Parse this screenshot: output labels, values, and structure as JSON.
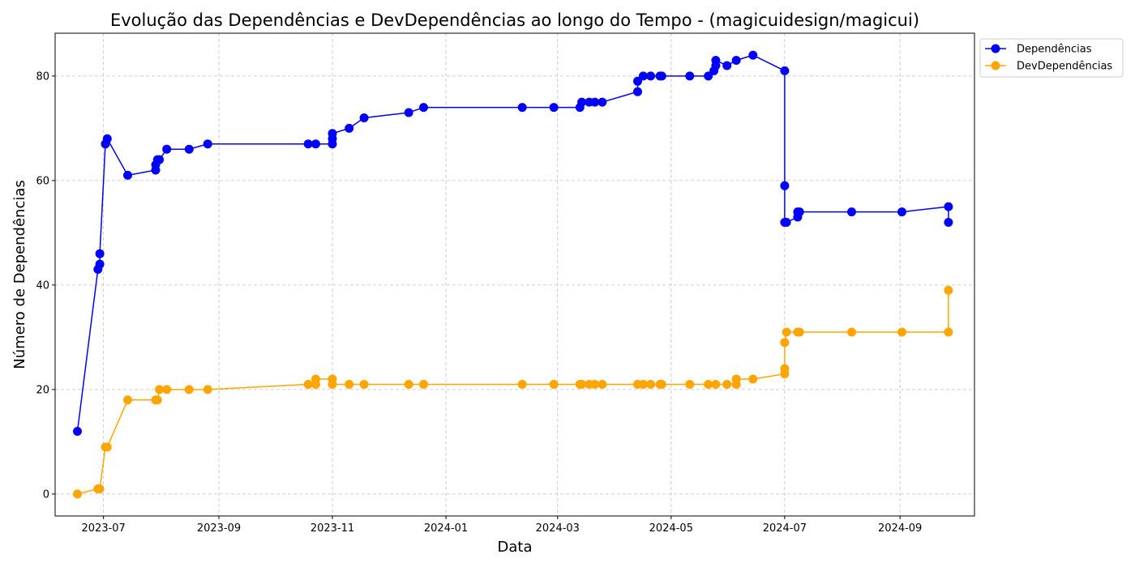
{
  "chart_data": {
    "type": "line",
    "title": "Evolução das Dependências e DevDependências ao longo do Tempo - (magicuidesign/magicui)",
    "xlabel": "Data",
    "ylabel": "Número de Dependências",
    "x_ticks": [
      "2023-07",
      "2023-09",
      "2023-11",
      "2024-01",
      "2024-03",
      "2024-05",
      "2024-07",
      "2024-09"
    ],
    "y_ticks": [
      0,
      20,
      40,
      60,
      80
    ],
    "xlim": [
      "2023-06-05",
      "2024-10-11"
    ],
    "ylim": [
      -4.2,
      88.2
    ],
    "grid": true,
    "legend_position": "outside-top-right",
    "series": [
      {
        "name": "Dependências",
        "color": "#0000ff",
        "points": [
          [
            "2023-06-17",
            12
          ],
          [
            "2023-06-28",
            43
          ],
          [
            "2023-06-29",
            44
          ],
          [
            "2023-06-29",
            46
          ],
          [
            "2023-07-02",
            67
          ],
          [
            "2023-07-03",
            68
          ],
          [
            "2023-07-14",
            61
          ],
          [
            "2023-07-29",
            62
          ],
          [
            "2023-07-29",
            63
          ],
          [
            "2023-07-30",
            64
          ],
          [
            "2023-07-31",
            64
          ],
          [
            "2023-08-04",
            66
          ],
          [
            "2023-08-16",
            66
          ],
          [
            "2023-08-26",
            67
          ],
          [
            "2023-10-19",
            67
          ],
          [
            "2023-10-23",
            67
          ],
          [
            "2023-11-01",
            67
          ],
          [
            "2023-11-01",
            68
          ],
          [
            "2023-11-01",
            69
          ],
          [
            "2023-11-10",
            70
          ],
          [
            "2023-11-18",
            72
          ],
          [
            "2023-12-12",
            73
          ],
          [
            "2023-12-20",
            74
          ],
          [
            "2024-02-11",
            74
          ],
          [
            "2024-02-28",
            74
          ],
          [
            "2024-03-13",
            74
          ],
          [
            "2024-03-14",
            75
          ],
          [
            "2024-03-18",
            75
          ],
          [
            "2024-03-21",
            75
          ],
          [
            "2024-03-25",
            75
          ],
          [
            "2024-04-13",
            77
          ],
          [
            "2024-04-13",
            79
          ],
          [
            "2024-04-16",
            80
          ],
          [
            "2024-04-20",
            80
          ],
          [
            "2024-04-25",
            80
          ],
          [
            "2024-04-26",
            80
          ],
          [
            "2024-05-11",
            80
          ],
          [
            "2024-05-21",
            80
          ],
          [
            "2024-05-24",
            81
          ],
          [
            "2024-05-25",
            82
          ],
          [
            "2024-05-25",
            83
          ],
          [
            "2024-05-31",
            82
          ],
          [
            "2024-06-05",
            83
          ],
          [
            "2024-06-14",
            84
          ],
          [
            "2024-07-01",
            81
          ],
          [
            "2024-07-01",
            59
          ],
          [
            "2024-07-01",
            52
          ],
          [
            "2024-07-02",
            52
          ],
          [
            "2024-07-08",
            53
          ],
          [
            "2024-07-08",
            54
          ],
          [
            "2024-07-09",
            54
          ],
          [
            "2024-08-06",
            54
          ],
          [
            "2024-09-02",
            54
          ],
          [
            "2024-09-27",
            55
          ],
          [
            "2024-09-27",
            52
          ]
        ]
      },
      {
        "name": "DevDependências",
        "color": "#ffa500",
        "points": [
          [
            "2023-06-17",
            0
          ],
          [
            "2023-06-28",
            1
          ],
          [
            "2023-06-29",
            1
          ],
          [
            "2023-07-02",
            9
          ],
          [
            "2023-07-03",
            9
          ],
          [
            "2023-07-14",
            18
          ],
          [
            "2023-07-29",
            18
          ],
          [
            "2023-07-30",
            18
          ],
          [
            "2023-07-31",
            20
          ],
          [
            "2023-08-04",
            20
          ],
          [
            "2023-08-16",
            20
          ],
          [
            "2023-08-26",
            20
          ],
          [
            "2023-10-19",
            21
          ],
          [
            "2023-10-23",
            21
          ],
          [
            "2023-10-23",
            22
          ],
          [
            "2023-11-01",
            22
          ],
          [
            "2023-11-01",
            21
          ],
          [
            "2023-11-10",
            21
          ],
          [
            "2023-11-18",
            21
          ],
          [
            "2023-12-12",
            21
          ],
          [
            "2023-12-20",
            21
          ],
          [
            "2024-02-11",
            21
          ],
          [
            "2024-02-28",
            21
          ],
          [
            "2024-03-13",
            21
          ],
          [
            "2024-03-14",
            21
          ],
          [
            "2024-03-18",
            21
          ],
          [
            "2024-03-21",
            21
          ],
          [
            "2024-03-25",
            21
          ],
          [
            "2024-04-13",
            21
          ],
          [
            "2024-04-16",
            21
          ],
          [
            "2024-04-20",
            21
          ],
          [
            "2024-04-25",
            21
          ],
          [
            "2024-04-26",
            21
          ],
          [
            "2024-05-11",
            21
          ],
          [
            "2024-05-21",
            21
          ],
          [
            "2024-05-25",
            21
          ],
          [
            "2024-05-31",
            21
          ],
          [
            "2024-06-05",
            21
          ],
          [
            "2024-06-05",
            22
          ],
          [
            "2024-06-14",
            22
          ],
          [
            "2024-07-01",
            23
          ],
          [
            "2024-07-01",
            24
          ],
          [
            "2024-07-01",
            29
          ],
          [
            "2024-07-02",
            31
          ],
          [
            "2024-07-08",
            31
          ],
          [
            "2024-07-09",
            31
          ],
          [
            "2024-08-06",
            31
          ],
          [
            "2024-09-02",
            31
          ],
          [
            "2024-09-27",
            31
          ],
          [
            "2024-09-27",
            39
          ]
        ]
      }
    ]
  }
}
